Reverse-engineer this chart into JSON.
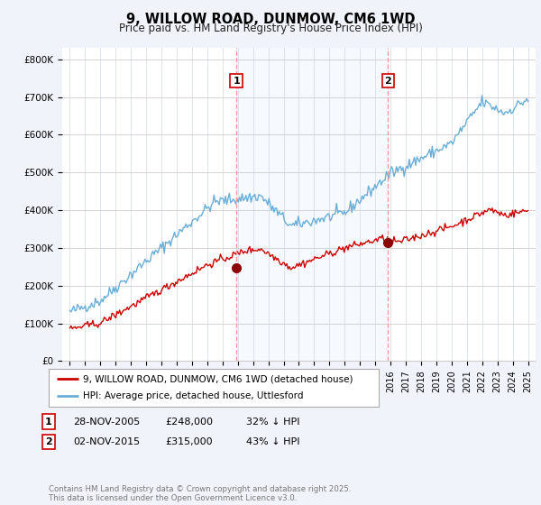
{
  "title": "9, WILLOW ROAD, DUNMOW, CM6 1WD",
  "subtitle": "Price paid vs. HM Land Registry's House Price Index (HPI)",
  "ylabel_ticks": [
    "£0",
    "£100K",
    "£200K",
    "£300K",
    "£400K",
    "£500K",
    "£600K",
    "£700K",
    "£800K"
  ],
  "ytick_values": [
    0,
    100000,
    200000,
    300000,
    400000,
    500000,
    600000,
    700000,
    800000
  ],
  "ylim": [
    0,
    830000
  ],
  "xlim_start": 1994.5,
  "xlim_end": 2025.5,
  "sale1_x": 2005.9,
  "sale1_y": 248000,
  "sale1_label": "1",
  "sale2_x": 2015.83,
  "sale2_y": 315000,
  "sale2_label": "2",
  "hpi_color": "#6aaed6",
  "price_color": "#cc0000",
  "sale_marker_color": "#8b0000",
  "vline_color": "#ff9999",
  "shade_color": "#ddeeff",
  "legend_entry1": "9, WILLOW ROAD, DUNMOW, CM6 1WD (detached house)",
  "legend_entry2": "HPI: Average price, detached house, Uttlesford",
  "footnote": "Contains HM Land Registry data © Crown copyright and database right 2025.\nThis data is licensed under the Open Government Licence v3.0.",
  "bg_color": "#f0f4fa",
  "plot_bg_color": "#ffffff"
}
